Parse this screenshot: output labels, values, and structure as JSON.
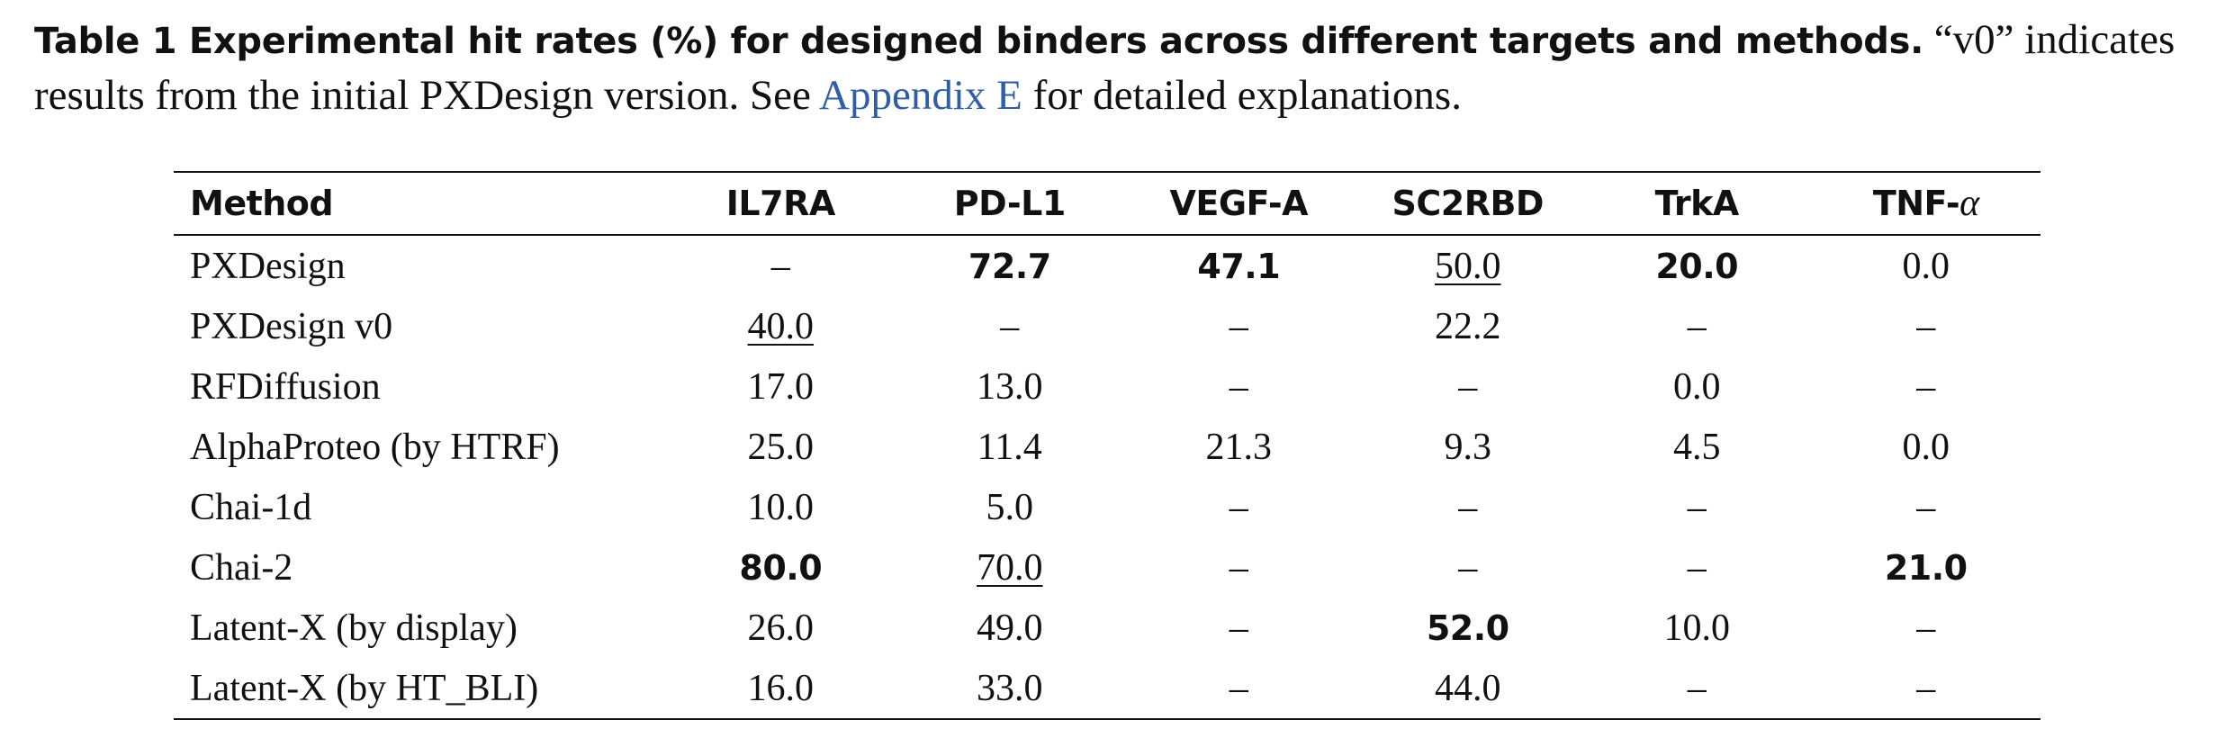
{
  "caption": {
    "label": "Table 1  Experimental hit rates (%) for designed binders across different targets and methods.",
    "text_before_link": " “v0” indicates results from the initial PXDesign version. See ",
    "link_text": "Appendix E",
    "text_after_link": " for detailed explanations."
  },
  "table": {
    "header_method": "Method",
    "headers": [
      "IL7RA",
      "PD-L1",
      "VEGF-A",
      "SC2RBD",
      "TrkA",
      "TNF-"
    ],
    "header_alpha": "α",
    "rows": [
      {
        "method": "PXDesign",
        "values": [
          "–",
          "72.7",
          "47.1",
          "50.0",
          "20.0",
          "0.0"
        ],
        "styles": [
          "",
          "bold",
          "bold",
          "underline",
          "bold",
          ""
        ]
      },
      {
        "method": "PXDesign v0",
        "values": [
          "40.0",
          "–",
          "–",
          "22.2",
          "–",
          "–"
        ],
        "styles": [
          "underline",
          "",
          "",
          "",
          "",
          ""
        ]
      },
      {
        "method": "RFDiffusion",
        "values": [
          "17.0",
          "13.0",
          "–",
          "–",
          "0.0",
          "–"
        ],
        "styles": [
          "",
          "",
          "",
          "",
          "",
          ""
        ]
      },
      {
        "method": "AlphaProteo (by HTRF)",
        "values": [
          "25.0",
          "11.4",
          "21.3",
          "9.3",
          "4.5",
          "0.0"
        ],
        "styles": [
          "",
          "",
          "",
          "",
          "",
          ""
        ]
      },
      {
        "method": "Chai-1d",
        "values": [
          "10.0",
          "5.0",
          "–",
          "–",
          "–",
          "–"
        ],
        "styles": [
          "",
          "",
          "",
          "",
          "",
          ""
        ]
      },
      {
        "method": "Chai-2",
        "values": [
          "80.0",
          "70.0",
          "–",
          "–",
          "–",
          "21.0"
        ],
        "styles": [
          "bold",
          "underline",
          "",
          "",
          "",
          "bold"
        ]
      },
      {
        "method": "Latent-X (by display)",
        "values": [
          "26.0",
          "49.0",
          "–",
          "52.0",
          "10.0",
          "–"
        ],
        "styles": [
          "",
          "",
          "",
          "bold",
          "",
          ""
        ]
      },
      {
        "method": "Latent-X (by HT_BLI)",
        "values": [
          "16.0",
          "33.0",
          "–",
          "44.0",
          "–",
          "–"
        ],
        "styles": [
          "",
          "",
          "",
          "",
          "",
          ""
        ]
      }
    ]
  }
}
